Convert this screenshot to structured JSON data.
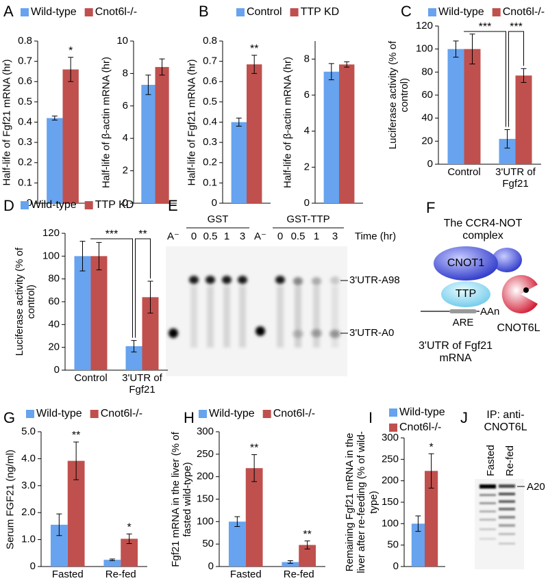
{
  "chart_data": [
    {
      "type": "bar",
      "panel": "A",
      "ylabel": "Half-life of Fgf21 mRNA (hr)",
      "categories": [
        null
      ],
      "ylim": [
        0,
        0.8
      ],
      "yticks": [
        0,
        0.1,
        0.2,
        0.3,
        0.4,
        0.5,
        0.6,
        0.7,
        0.8
      ],
      "series": [
        {
          "name": "Wild-type",
          "color": "#67a3ee",
          "values": [
            0.42
          ],
          "errors": [
            0.01
          ]
        },
        {
          "name": "Cnot6l-/-",
          "color": "#c0504d",
          "values": [
            0.66
          ],
          "errors": [
            0.06
          ]
        }
      ],
      "annotations": [
        "*"
      ]
    },
    {
      "type": "bar",
      "ylabel": "Half-life of β-actin mRNA (hr)",
      "categories": [
        null
      ],
      "ylim": [
        0,
        10
      ],
      "yticks": [
        0,
        2,
        4,
        6,
        8,
        10
      ],
      "series": [
        {
          "color": "#67a3ee",
          "values": [
            7.3
          ],
          "errors": [
            0.6
          ]
        },
        {
          "color": "#c0504d",
          "values": [
            8.4
          ],
          "errors": [
            0.5
          ]
        }
      ]
    },
    {
      "type": "bar",
      "panel": "B",
      "ylabel": "Half-life of Fgf21 mRNA (hr)",
      "categories": [
        null
      ],
      "ylim": [
        0,
        0.8
      ],
      "yticks": [
        0,
        0.1,
        0.2,
        0.3,
        0.4,
        0.5,
        0.6,
        0.7,
        0.8
      ],
      "series": [
        {
          "name": "Control",
          "color": "#67a3ee",
          "values": [
            0.4
          ],
          "errors": [
            0.02
          ]
        },
        {
          "name": "TTP KD",
          "color": "#c0504d",
          "values": [
            0.685
          ],
          "errors": [
            0.045
          ]
        }
      ],
      "annotations": [
        "**"
      ]
    },
    {
      "type": "bar",
      "ylabel": "Half-life of β-actin mRNA (hr)",
      "categories": [
        null
      ],
      "ylim": [
        0,
        9
      ],
      "yticks": [
        0,
        2,
        4,
        6,
        8
      ],
      "series": [
        {
          "color": "#67a3ee",
          "values": [
            7.3
          ],
          "errors": [
            0.45
          ]
        },
        {
          "color": "#c0504d",
          "values": [
            7.7
          ],
          "errors": [
            0.15
          ]
        }
      ]
    },
    {
      "type": "bar",
      "panel": "C",
      "ylabel": "Luciferase activity (% of control)",
      "categories": [
        "Control",
        "3'UTR of Fgf21"
      ],
      "ylim": [
        0,
        120
      ],
      "yticks": [
        0,
        20,
        40,
        60,
        80,
        100,
        120
      ],
      "series": [
        {
          "name": "Wild-type",
          "color": "#67a3ee",
          "values": [
            100,
            22
          ],
          "errors": [
            7,
            8
          ]
        },
        {
          "name": "Cnot6l-/-",
          "color": "#c0504d",
          "values": [
            100,
            77
          ],
          "errors": [
            13,
            6
          ]
        }
      ],
      "annotations": [
        "***",
        "***"
      ]
    },
    {
      "type": "bar",
      "panel": "D",
      "ylabel": "Luciferase activity (% of control)",
      "categories": [
        "Control",
        "3'UTR of Fgf21"
      ],
      "ylim": [
        0,
        120
      ],
      "yticks": [
        0,
        20,
        40,
        60,
        80,
        100,
        120
      ],
      "series": [
        {
          "name": "Wild-type",
          "color": "#67a3ee",
          "values": [
            100,
            21
          ],
          "errors": [
            13,
            5
          ]
        },
        {
          "name": "TTP KD",
          "color": "#c0504d",
          "values": [
            100,
            64
          ],
          "errors": [
            12,
            14
          ]
        }
      ],
      "annotations": [
        "***",
        "**"
      ]
    },
    {
      "type": "bar",
      "panel": "G",
      "ylabel": "Serum FGF21 (ng/ml)",
      "categories": [
        "Fasted",
        "Re-fed"
      ],
      "ylim": [
        0,
        5
      ],
      "yticks": [
        0,
        {
          "value": 1,
          "label": "1.0"
        },
        {
          "value": 2,
          "label": "2.0"
        },
        {
          "value": 3,
          "label": "3.0"
        },
        {
          "value": 4,
          "label": "4.0"
        },
        {
          "value": 5,
          "label": "5.0"
        }
      ],
      "series": [
        {
          "name": "Wild-type",
          "color": "#67a3ee",
          "values": [
            1.55,
            0.25
          ],
          "errors": [
            0.4,
            0.03
          ]
        },
        {
          "name": "Cnot6l-/-",
          "color": "#c0504d",
          "values": [
            3.92,
            1.03
          ],
          "errors": [
            0.7,
            0.18
          ]
        }
      ],
      "annotations": [
        "**",
        "*"
      ]
    },
    {
      "type": "bar",
      "panel": "H",
      "ylabel": "Fgf21 mRNA in the liver (% of fasted wild-type)",
      "categories": [
        "Fasted",
        "Re-fed"
      ],
      "ylim": [
        0,
        300
      ],
      "yticks": [
        0,
        50,
        100,
        150,
        200,
        250,
        300
      ],
      "series": [
        {
          "name": "Wild-type",
          "color": "#67a3ee",
          "values": [
            100,
            10
          ],
          "errors": [
            11,
            3
          ]
        },
        {
          "name": "Cnot6l-/-",
          "color": "#c0504d",
          "values": [
            219,
            48
          ],
          "errors": [
            30,
            9
          ]
        }
      ],
      "annotations": [
        "**",
        "**"
      ]
    },
    {
      "type": "bar",
      "panel": "I",
      "ylabel": "Remaining Fgf21 mRNA in the liver after re-feeding (% of wild-type)",
      "categories": [
        null
      ],
      "ylim": [
        0,
        300
      ],
      "yticks": [
        0,
        50,
        100,
        150,
        200,
        250,
        300
      ],
      "series": [
        {
          "name": "Wild-type",
          "color": "#67a3ee",
          "values": [
            100
          ],
          "errors": [
            18
          ]
        },
        {
          "name": "Cnot6l-/-",
          "color": "#c0504d",
          "values": [
            223
          ],
          "errors": [
            40
          ]
        }
      ],
      "annotations": [
        "*"
      ]
    }
  ],
  "gel_e": {
    "panel": "E",
    "groups": [
      "GST",
      "GST-TTP"
    ],
    "lanes": [
      "A⁻",
      "0",
      "0.5",
      "1",
      "3",
      "A⁻",
      "0",
      "0.5",
      "1",
      "3"
    ],
    "time_label": "Time (hr)",
    "band_labels": [
      "3'UTR-A98",
      "3'UTR-A0"
    ]
  },
  "diagram_f": {
    "panel": "F",
    "title": "The CCR4-NOT complex",
    "nodes": [
      "CNOT1",
      "TTP",
      "CNOT6L"
    ],
    "labels": [
      "ARE",
      "AAn"
    ],
    "caption": "3'UTR of Fgf21 mRNA"
  },
  "gel_j": {
    "panel": "J",
    "title": "IP: anti-CNOT6L",
    "lanes": [
      "Fasted",
      "Re-fed"
    ],
    "band_label": "A20"
  }
}
